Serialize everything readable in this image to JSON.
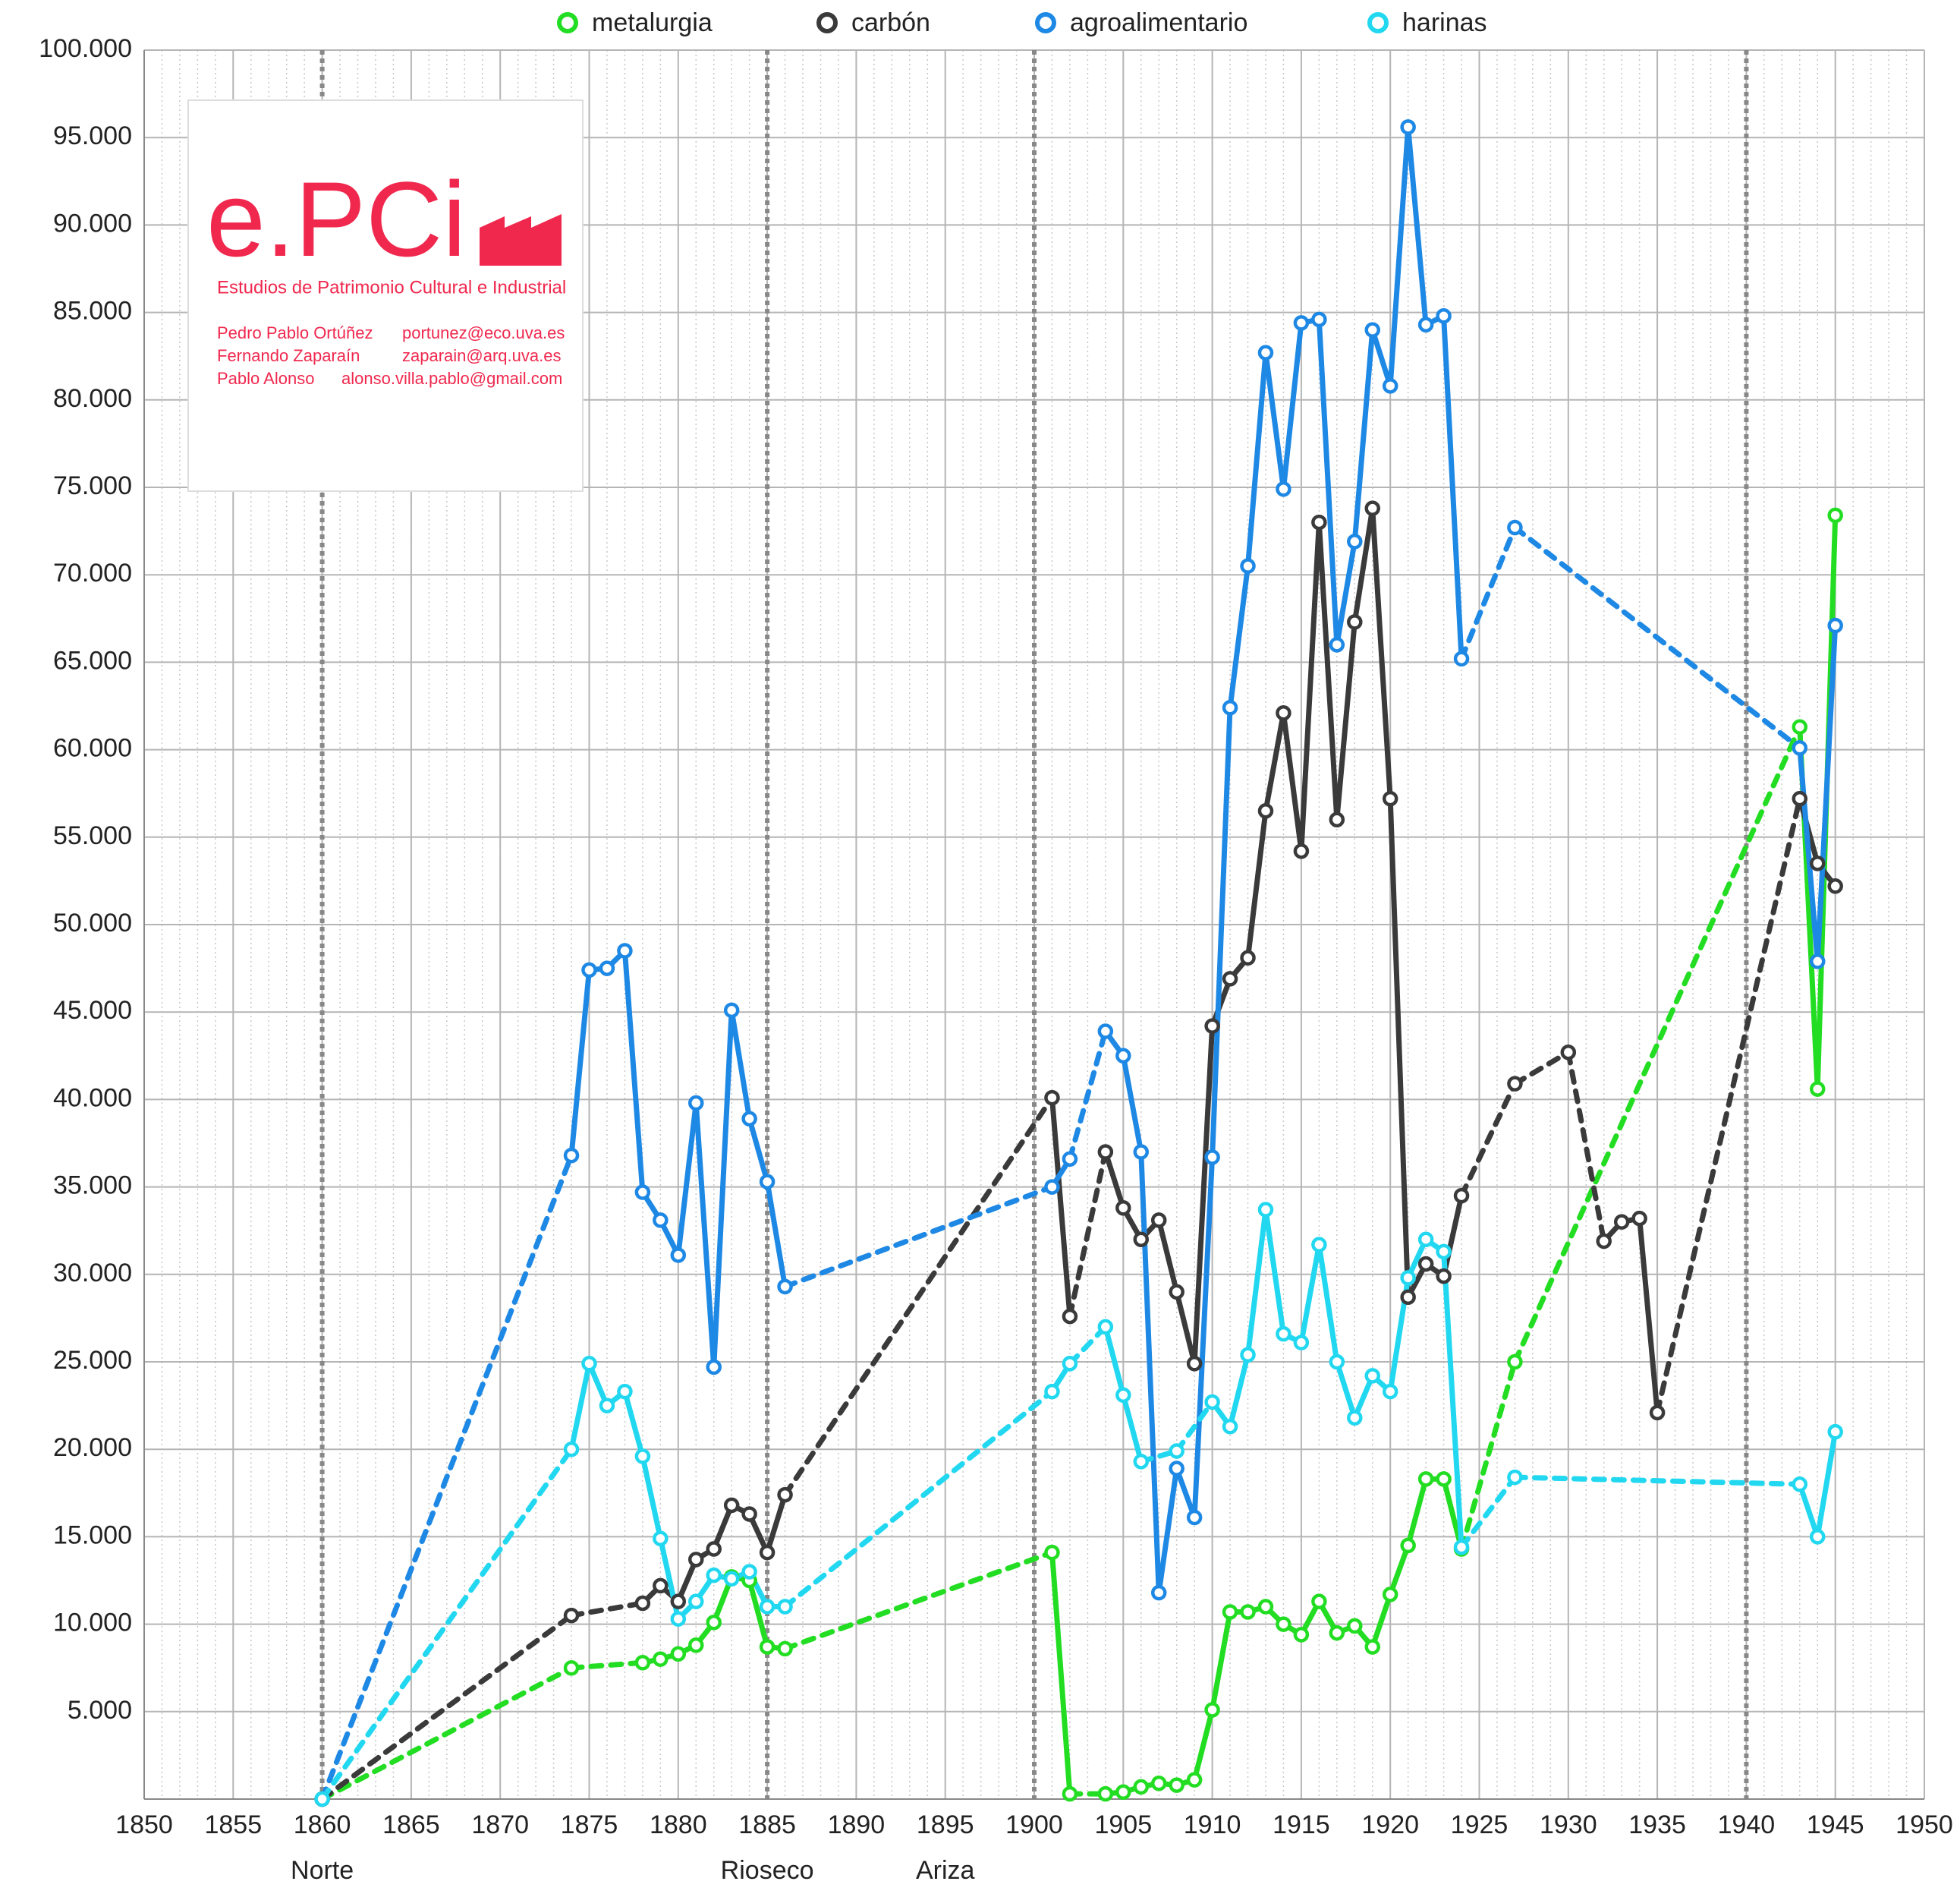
{
  "chart_data": {
    "type": "line",
    "x": [
      1860,
      1874,
      1875,
      1876,
      1877,
      1878,
      1879,
      1880,
      1881,
      1882,
      1883,
      1884,
      1885,
      1886,
      1901,
      1902,
      1904,
      1905,
      1906,
      1907,
      1908,
      1909,
      1910,
      1911,
      1912,
      1913,
      1914,
      1915,
      1916,
      1917,
      1918,
      1919,
      1920,
      1921,
      1922,
      1923,
      1924,
      1927,
      1930,
      1932,
      1933,
      1934,
      1935,
      1943,
      1944,
      1945
    ],
    "series": [
      {
        "name": "metalurgia",
        "color": "#22dd22",
        "values": [
          0,
          7500,
          null,
          null,
          null,
          7800,
          8000,
          8300,
          8800,
          10100,
          12700,
          12500,
          8700,
          8600,
          14100,
          300,
          300,
          400,
          700,
          900,
          800,
          1100,
          5100,
          10700,
          10700,
          11000,
          10000,
          9400,
          11300,
          9500,
          9900,
          8700,
          11700,
          14500,
          18300,
          18300,
          14300,
          25000,
          null,
          null,
          null,
          null,
          null,
          61300,
          40600,
          73400
        ]
      },
      {
        "name": "carbón",
        "color": "#3a3a3a",
        "values": [
          0,
          10500,
          null,
          null,
          null,
          11200,
          12200,
          11300,
          13700,
          14300,
          16800,
          16300,
          14100,
          17400,
          40100,
          27600,
          37000,
          33800,
          32000,
          33100,
          29000,
          24900,
          44200,
          46900,
          48100,
          56500,
          62100,
          54200,
          73000,
          56000,
          67300,
          73800,
          57200,
          28700,
          30600,
          29900,
          34500,
          40900,
          42700,
          31900,
          33000,
          33200,
          22100,
          57200,
          53500,
          52200
        ]
      },
      {
        "name": "agroalimentario",
        "color": "#1e88e5",
        "values": [
          0,
          36800,
          47400,
          47500,
          48500,
          34700,
          33100,
          31100,
          39800,
          24700,
          45100,
          38900,
          35300,
          29300,
          35000,
          36600,
          43900,
          42500,
          37000,
          11800,
          18900,
          16100,
          36700,
          62400,
          70500,
          82700,
          74900,
          84400,
          84600,
          66000,
          71900,
          84000,
          80800,
          95600,
          84300,
          84800,
          65200,
          72700,
          null,
          null,
          null,
          null,
          null,
          60100,
          47900,
          67100
        ]
      },
      {
        "name": "harinas",
        "color": "#22d8f0",
        "values": [
          0,
          20000,
          24900,
          22500,
          23300,
          19600,
          14900,
          10300,
          11300,
          12800,
          12600,
          13000,
          11000,
          11000,
          23300,
          24900,
          27000,
          23100,
          19300,
          null,
          19900,
          null,
          22700,
          21300,
          25400,
          33700,
          26600,
          26100,
          31700,
          25000,
          21800,
          24200,
          23300,
          29800,
          32000,
          31300,
          14400,
          18400,
          null,
          null,
          null,
          null,
          null,
          18000,
          15000,
          21000
        ]
      }
    ],
    "gap_style": "dashed",
    "xlim": [
      1850,
      1950
    ],
    "xticks": [
      1850,
      1855,
      1860,
      1865,
      1870,
      1875,
      1880,
      1885,
      1890,
      1895,
      1900,
      1905,
      1910,
      1915,
      1920,
      1925,
      1930,
      1935,
      1940,
      1945,
      1950
    ],
    "ylim": [
      0,
      100000
    ],
    "yticks": [
      {
        "value": 5000,
        "label": "5.000"
      },
      {
        "value": 10000,
        "label": "10.000"
      },
      {
        "value": 15000,
        "label": "15.000"
      },
      {
        "value": 20000,
        "label": "20.000"
      },
      {
        "value": 25000,
        "label": "25.000"
      },
      {
        "value": 30000,
        "label": "30.000"
      },
      {
        "value": 35000,
        "label": "35.000"
      },
      {
        "value": 40000,
        "label": "40.000"
      },
      {
        "value": 45000,
        "label": "45.000"
      },
      {
        "value": 50000,
        "label": "50.000"
      },
      {
        "value": 55000,
        "label": "55.000"
      },
      {
        "value": 60000,
        "label": "60.000"
      },
      {
        "value": 65000,
        "label": "65.000"
      },
      {
        "value": 70000,
        "label": "70.000"
      },
      {
        "value": 75000,
        "label": "75.000"
      },
      {
        "value": 80000,
        "label": "80.000"
      },
      {
        "value": 85000,
        "label": "85.000"
      },
      {
        "value": 90000,
        "label": "90.000"
      },
      {
        "value": 95000,
        "label": "95.000"
      },
      {
        "value": 100000,
        "label": "100.000"
      }
    ],
    "grid": true,
    "legend": "top",
    "vlines": [
      1860,
      1885,
      1900,
      1940
    ],
    "annotations": [
      {
        "x": 1860,
        "text": "Norte"
      },
      {
        "x": 1885,
        "text": "Rioseco"
      },
      {
        "x": 1895,
        "text": "Ariza"
      }
    ]
  },
  "logo": {
    "mark": "e.PCi",
    "subtitle": "Estudios de Patrimonio Cultural e Industrial",
    "people": [
      {
        "name": "Pedro Pablo Ortúñez",
        "email": "portunez@eco.uva.es"
      },
      {
        "name": "Fernando Zaparaín",
        "email": "zaparain@arq.uva.es"
      },
      {
        "name": "Pablo Alonso",
        "email": "alonso.villa.pablo@gmail.com"
      }
    ]
  }
}
